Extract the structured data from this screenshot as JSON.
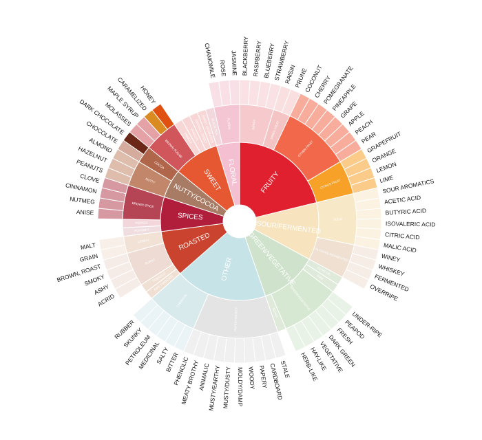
{
  "chart_data": {
    "type": "sunburst",
    "children": [
      {
        "name": "FRUITY",
        "color": "#e0202f",
        "children": [
          {
            "name": "BERRY",
            "color": "#f6c9cc",
            "children": [
              {
                "name": "BLACKBERRY"
              },
              {
                "name": "RASPBERRY"
              },
              {
                "name": "BLUEBERRY"
              },
              {
                "name": "STRAWBERRY"
              }
            ]
          },
          {
            "name": "DRIED FRUIT",
            "color": "#f4c4c4",
            "children": [
              {
                "name": "RAISIN"
              },
              {
                "name": "PRUNE"
              }
            ]
          },
          {
            "name": "OTHER FRUIT",
            "color": "#f2684b",
            "children": [
              {
                "name": "COCONUT"
              },
              {
                "name": "CHERRY"
              },
              {
                "name": "POMEGRANATE"
              },
              {
                "name": "PINEAPPLE"
              },
              {
                "name": "GRAPE"
              },
              {
                "name": "APPLE"
              },
              {
                "name": "PEACH"
              },
              {
                "name": "PEAR"
              }
            ]
          },
          {
            "name": "CITRUS FRUIT",
            "color": "#f7a128",
            "children": [
              {
                "name": "GRAPEFRUIT"
              },
              {
                "name": "ORANGE"
              },
              {
                "name": "LEMON"
              },
              {
                "name": "LIME"
              }
            ]
          }
        ]
      },
      {
        "name": "SOUR/FERMENTED",
        "color": "#f7e4bf",
        "children": [
          {
            "name": "SOUR",
            "color": "#f7e8c8",
            "children": [
              {
                "name": "SOUR AROMATICS"
              },
              {
                "name": "ACETIC ACID"
              },
              {
                "name": "BUTYRIC ACID"
              },
              {
                "name": "ISOVALERIC ACID"
              },
              {
                "name": "CITRIC ACID"
              },
              {
                "name": "MALIC ACID"
              }
            ]
          },
          {
            "name": "ALCOHOL/FERMENTED",
            "color": "#efe0d2",
            "children": [
              {
                "name": "WINEY"
              },
              {
                "name": "WHISKEY"
              },
              {
                "name": "FERMENTED"
              },
              {
                "name": "OVERRIPE"
              }
            ]
          }
        ]
      },
      {
        "name": "GREEN/VEGETATIVE",
        "color": "#cfe3cc",
        "children": [
          {
            "name": "OLIVE OIL",
            "color": "#dfeadb"
          },
          {
            "name": "RAW",
            "color": "#dfeadb"
          },
          {
            "name": "GREEN/VEGETATIVE",
            "color": "#d6e8d2",
            "children": [
              {
                "name": "UNDER-RIPE"
              },
              {
                "name": "PEAPOD"
              },
              {
                "name": "FRESH"
              },
              {
                "name": "DARK GREEN"
              },
              {
                "name": "VEGETATIVE"
              },
              {
                "name": "HAY-LIKE"
              },
              {
                "name": "HERB-LIKE"
              }
            ]
          },
          {
            "name": "BEANY",
            "color": "#dfeadb"
          }
        ]
      },
      {
        "name": "OTHER",
        "color": "#c6e3e8",
        "children": [
          {
            "name": "PAPERY/MUSTY",
            "color": "#e4e4e4",
            "children": [
              {
                "name": "STALE"
              },
              {
                "name": "CARDBOARD"
              },
              {
                "name": "PAPERY"
              },
              {
                "name": "WOODY"
              },
              {
                "name": "MOLDY/DAMP"
              },
              {
                "name": "MUSTY/DUSTY"
              },
              {
                "name": "MUSTY/EARTHY"
              },
              {
                "name": "ANIMALIC"
              },
              {
                "name": "MEATY BROTHY"
              },
              {
                "name": "PHENOLIC"
              }
            ]
          },
          {
            "name": "CHEMICAL",
            "color": "#d8eaec",
            "children": [
              {
                "name": "BITTER"
              },
              {
                "name": "SALTY"
              },
              {
                "name": "MEDICINAL"
              },
              {
                "name": "PETROLEUM"
              },
              {
                "name": "SKUNKY"
              },
              {
                "name": "RUBBER"
              }
            ]
          }
        ]
      },
      {
        "name": "ROASTED",
        "color": "#c9432f",
        "children": [
          {
            "name": "PIPE TOBACCO",
            "color": "#f0e0d4"
          },
          {
            "name": "TOBACCO",
            "color": "#f0e0d4"
          },
          {
            "name": "BURNT",
            "color": "#eedcd4",
            "children": [
              {
                "name": "ACRID"
              },
              {
                "name": "ASHY"
              },
              {
                "name": "SMOKY"
              },
              {
                "name": "BROWN, ROAST"
              }
            ]
          },
          {
            "name": "CEREAL",
            "color": "#f2e2d6",
            "children": [
              {
                "name": "GRAIN"
              },
              {
                "name": "MALT"
              }
            ]
          }
        ]
      },
      {
        "name": "SPICES",
        "color": "#b01e3c",
        "children": [
          {
            "name": "PUNGENT",
            "color": "#f0dde0"
          },
          {
            "name": "PEPPER",
            "color": "#f2d6dc"
          },
          {
            "name": "BROWN SPICE",
            "color": "#b54555",
            "children": [
              {
                "name": "ANISE"
              },
              {
                "name": "NUTMEG"
              },
              {
                "name": "CINNAMON"
              },
              {
                "name": "CLOVE"
              }
            ]
          }
        ]
      },
      {
        "name": "NUTTY/COCOA",
        "color": "#a87b64",
        "children": [
          {
            "name": "NUTTY",
            "color": "#c2876a",
            "children": [
              {
                "name": "PEANUTS"
              },
              {
                "name": "HAZELNUT"
              },
              {
                "name": "ALMOND"
              }
            ]
          },
          {
            "name": "COCOA",
            "color": "#b0664a",
            "children": [
              {
                "name": "CHOCOLATE"
              },
              {
                "name": "DARK CHOCOLATE",
                "color": "#6b2818"
              }
            ]
          }
        ]
      },
      {
        "name": "SWEET",
        "color": "#e65832",
        "children": [
          {
            "name": "BROWN SUGAR",
            "color": "#d0565c",
            "children": [
              {
                "name": "MOLASSES"
              },
              {
                "name": "MAPLE SYRUP"
              },
              {
                "name": "CARAMELIZED",
                "color": "#d98a20"
              },
              {
                "name": "HONEY",
                "color": "#e05010"
              }
            ]
          },
          {
            "name": "VANILLA",
            "color": "#f8d6d6"
          },
          {
            "name": "VANILLIN",
            "color": "#f8d6d6"
          },
          {
            "name": "OVERALL SWEET",
            "color": "#f8d6d6"
          },
          {
            "name": "SWEET AROMATICS",
            "color": "#f8d6d6"
          }
        ]
      },
      {
        "name": "FLORAL",
        "color": "#f4bfd0",
        "children": [
          {
            "name": "BLACK TEA",
            "color": "#f2d8dc"
          },
          {
            "name": "FLORAL",
            "color": "#f4c6d4",
            "children": [
              {
                "name": "CHAMOMILE"
              },
              {
                "name": "ROSE"
              },
              {
                "name": "JASMINE"
              }
            ]
          }
        ]
      }
    ]
  }
}
